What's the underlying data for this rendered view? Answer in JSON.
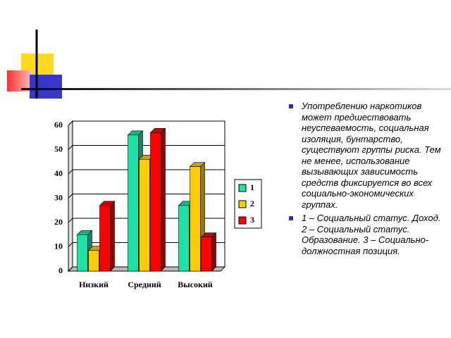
{
  "chart_data": {
    "type": "bar3d",
    "categories": [
      "Низкий",
      "Средний",
      "Высокий"
    ],
    "series": [
      {
        "name": "1",
        "color": "#20e0a8",
        "values": [
          15,
          56,
          27
        ]
      },
      {
        "name": "2",
        "color": "#ffcc00",
        "values": [
          8.5,
          46,
          43
        ]
      },
      {
        "name": "3",
        "color": "#ff0000",
        "values": [
          27,
          57,
          14
        ]
      }
    ],
    "ylim": [
      0,
      60
    ],
    "yticks": [
      0,
      10,
      20,
      30,
      40,
      50,
      60
    ],
    "grid": true,
    "legend": "right"
  },
  "bullets": [
    "Употреблению наркотиков может предшествовать неуспеваемость, социальная изоляция, бунтарство, существуют группы риска. Тем не менее, использование вызывающих зависимость средств фиксируется во всех социально-экономических группах.",
    "1 – Социальный статус. Доход. 2 – Социальный статус. Образование. 3 – Социально-должностная позиция."
  ]
}
